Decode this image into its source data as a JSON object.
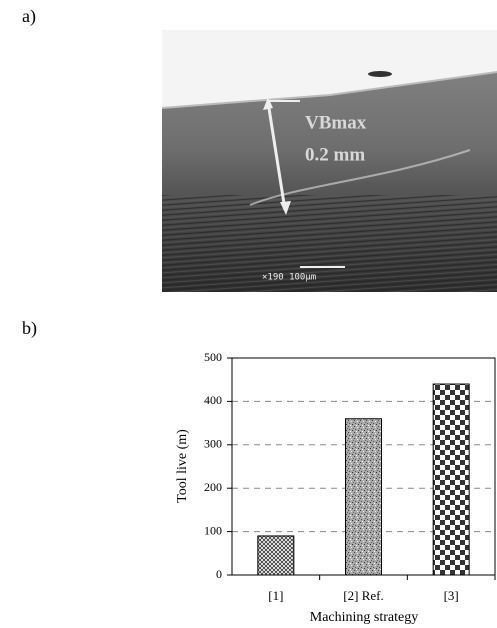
{
  "figure": {
    "label_a": "a)",
    "label_b": "b)",
    "image": {
      "annotation": "VBmax",
      "measurement": "0.2 mm",
      "scale_bar": "×190 100μm"
    }
  },
  "chart_data": {
    "type": "bar",
    "x_label": "Machining strategy",
    "y_label": "Tool live (m)",
    "categories": [
      "[1]",
      "[2] Ref.",
      "[3]"
    ],
    "values": [
      90,
      360,
      440
    ],
    "ylim": [
      0,
      500
    ],
    "yticks": [
      0,
      100,
      200,
      300,
      400,
      500
    ],
    "grid": true
  }
}
